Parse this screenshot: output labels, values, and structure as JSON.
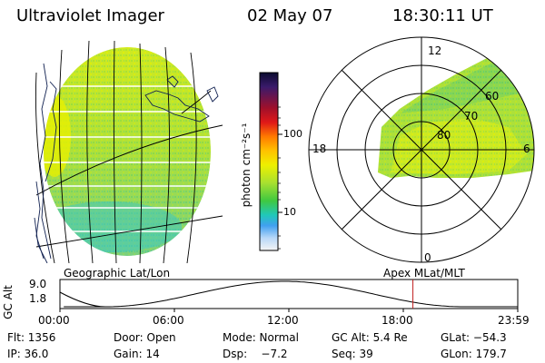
{
  "header": {
    "title": "Ultraviolet Imager",
    "date": "02 May 07",
    "time": "18:30:11 UT"
  },
  "geo_panel": {
    "label": "Geographic Lat/Lon"
  },
  "colorbar": {
    "label": "photon cm⁻²s⁻¹",
    "ticks": [
      "100",
      "10"
    ],
    "colors": [
      "#0b0b2e",
      "#3a1a6b",
      "#a0102a",
      "#e01818",
      "#ff7a00",
      "#ffc200",
      "#eef000",
      "#a8e030",
      "#40c840",
      "#20c8b8",
      "#40a0f0",
      "#b8d8f8",
      "#f4f4f4"
    ]
  },
  "polar_panel": {
    "label": "Apex MLat/MLT",
    "mlt_labels": [
      "12",
      "18",
      "6",
      "0"
    ],
    "lat_labels": [
      "60",
      "70",
      "80"
    ]
  },
  "timeline": {
    "ylabel": "GC Alt",
    "y_ticks": [
      "9.0",
      "1.8"
    ],
    "x_ticks": [
      "00:00",
      "06:00",
      "12:00",
      "18:00",
      "23:59"
    ],
    "current_time_hours": 18.503
  },
  "info": {
    "flt": "Flt: 1356",
    "door": "Door: Open",
    "mode": "Mode: Normal",
    "gc_alt": "GC Alt: 5.4 Re",
    "glat": "GLat: −54.3",
    "ip": "IP: 36.0",
    "gain": "Gain: 14",
    "dsp": "Dsp:    −7.2",
    "seq": "Seq: 39",
    "glon": "GLon: 179.7"
  }
}
